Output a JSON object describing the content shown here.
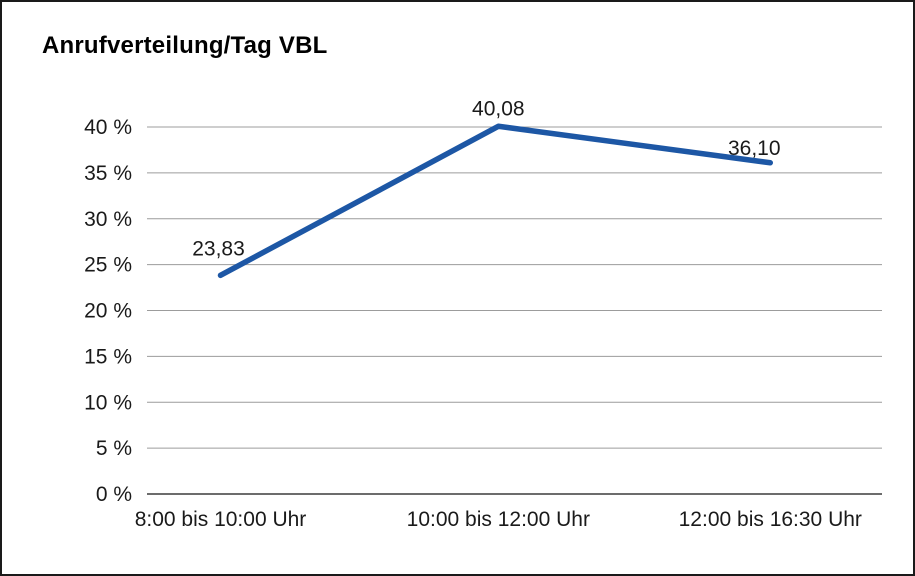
{
  "chart_data": {
    "type": "line",
    "title": "Anrufverteilung/Tag VBL",
    "categories": [
      "8:00 bis 10:00 Uhr",
      "10:00 bis 12:00 Uhr",
      "12:00 bis 16:30 Uhr"
    ],
    "values": [
      23.83,
      40.08,
      36.1
    ],
    "value_labels": [
      "23,83",
      "40,08",
      "36,10"
    ],
    "xlabel": "",
    "ylabel": "",
    "ylim": [
      0,
      40
    ],
    "ytick_step": 5,
    "ytick_labels": [
      "0 %",
      "5 %",
      "10 %",
      "15 %",
      "20 %",
      "25 %",
      "30 %",
      "35 %",
      "40 %"
    ],
    "grid": true,
    "legend_position": "none",
    "line_color": "#1d57a5",
    "gridline_color": "#9c9c9c",
    "axis_line_color": "#3c3c3c",
    "text_color": "#1a1a1a"
  }
}
